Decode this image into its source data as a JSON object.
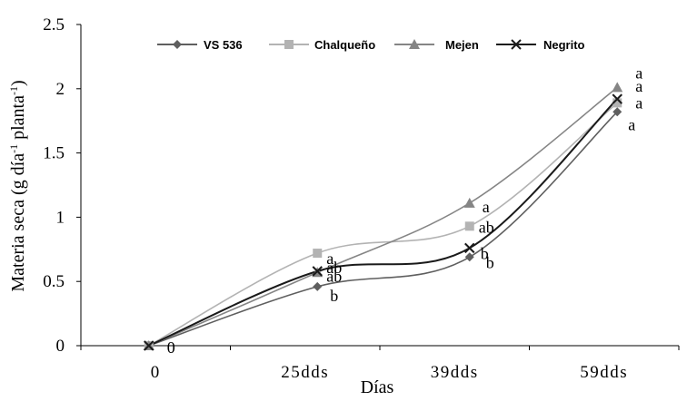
{
  "chart_data": {
    "type": "line",
    "categories": [
      "0",
      "25dds",
      "39dds",
      "59dds"
    ],
    "xlabel": "Días",
    "ylabel": {
      "base": "Materia seca (g día",
      "sup1": "-1",
      "mid": " planta",
      "sup2": "-1",
      "end": ")"
    },
    "ylim": [
      0,
      2.5
    ],
    "yticks": [
      "0",
      "0.5",
      "1",
      "1.5",
      "2",
      "2.5"
    ],
    "grid": false,
    "legend_position": "top",
    "series": [
      {
        "name": "VS 536",
        "color": "#5f5f5f",
        "marker": "diamond",
        "values": [
          0,
          0.46,
          0.69,
          1.82
        ],
        "labels": [
          "0",
          "b",
          "b",
          "a"
        ]
      },
      {
        "name": "Chalqueño",
        "color": "#b3b3b3",
        "marker": "square",
        "values": [
          0,
          0.72,
          0.93,
          1.89
        ],
        "labels": [
          "",
          "a",
          "ab",
          "a"
        ]
      },
      {
        "name": "Mejen",
        "color": "#858585",
        "marker": "triangle",
        "values": [
          0,
          0.57,
          1.11,
          2.01
        ],
        "labels": [
          "",
          "ab",
          "a",
          "a"
        ]
      },
      {
        "name": "Negrito",
        "color": "#1a1a1a",
        "marker": "x",
        "values": [
          0,
          0.58,
          0.76,
          1.92
        ],
        "labels": [
          "",
          "ab",
          "b",
          "a"
        ]
      }
    ]
  }
}
